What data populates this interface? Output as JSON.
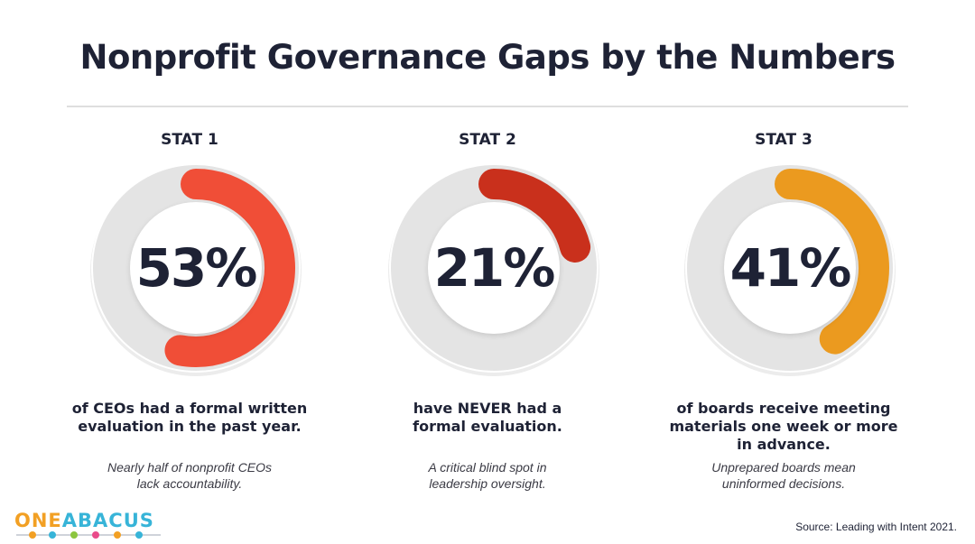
{
  "title": "Nonprofit Governance Gaps by the Numbers",
  "stats": [
    {
      "label": "STAT 1",
      "value": 53,
      "value_text": "53%",
      "desc_lines": [
        "of CEOs had a formal written",
        "evaluation in the past year."
      ],
      "note_lines": [
        "Nearly half of nonprofit CEOs",
        "lack accountability."
      ],
      "color": "#f04e37"
    },
    {
      "label": "STAT 2",
      "value": 21,
      "value_text": "21%",
      "desc_lines": [
        "have NEVER had a",
        "formal evaluation."
      ],
      "note_lines": [
        "A critical blind spot in",
        "leadership oversight."
      ],
      "color": "#c9301c"
    },
    {
      "label": "STAT 3",
      "value": 41,
      "value_text": "41%",
      "desc_lines": [
        "of boards receive meeting",
        "materials one week or more",
        "in advance."
      ],
      "note_lines": [
        "Unprepared boards mean",
        "uninformed decisions."
      ],
      "color": "#eb9a1f"
    }
  ],
  "logo": {
    "part1": "ONE",
    "part2": "ABACUS",
    "icon": "abacus-beads-icon"
  },
  "source": "Source: Leading with Intent 2021.",
  "colors": {
    "track": "#e4e4e4",
    "text": "#1e2235",
    "logo_orange": "#f2a024",
    "logo_blue": "#37b4d8"
  }
}
